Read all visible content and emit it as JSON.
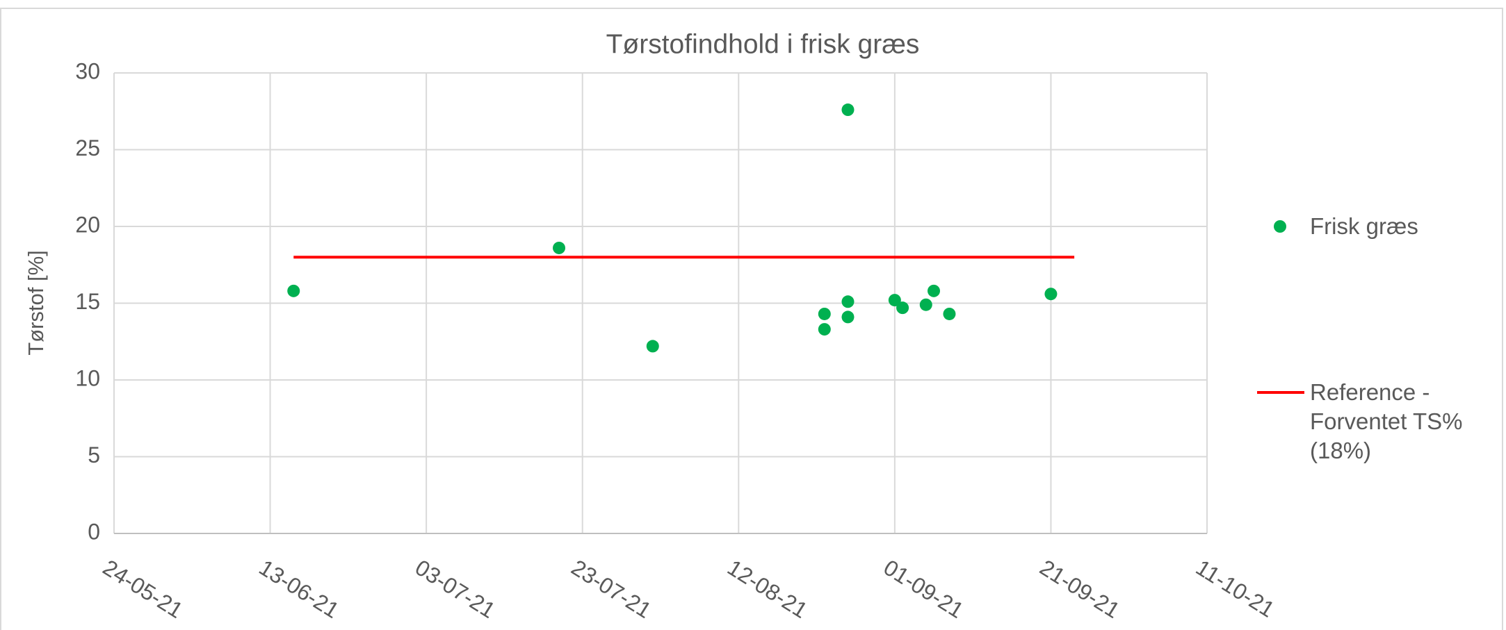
{
  "chart_data": {
    "type": "scatter",
    "title": "Tørstofindhold i frisk græs",
    "ylabel": "Tørstof [%]",
    "xlim": [
      "2021-05-24",
      "2021-10-11"
    ],
    "xticks": [
      {
        "value": "2021-05-24",
        "label": "24-05-21"
      },
      {
        "value": "2021-06-13",
        "label": "13-06-21"
      },
      {
        "value": "2021-07-03",
        "label": "03-07-21"
      },
      {
        "value": "2021-07-23",
        "label": "23-07-21"
      },
      {
        "value": "2021-08-12",
        "label": "12-08-21"
      },
      {
        "value": "2021-09-01",
        "label": "01-09-21"
      },
      {
        "value": "2021-09-21",
        "label": "21-09-21"
      },
      {
        "value": "2021-10-11",
        "label": "11-10-21"
      }
    ],
    "ylim": [
      0,
      30
    ],
    "yticks": [
      0,
      5,
      10,
      15,
      20,
      25,
      30
    ],
    "grid": true,
    "legend": "right",
    "series": [
      {
        "name": "Frisk græs",
        "color": "#00b050",
        "kind": "scatter",
        "x": [
          "2021-06-16",
          "2021-07-20",
          "2021-08-01",
          "2021-08-23",
          "2021-08-23",
          "2021-08-26",
          "2021-08-26",
          "2021-08-26",
          "2021-09-01",
          "2021-09-02",
          "2021-09-05",
          "2021-09-06",
          "2021-09-08",
          "2021-09-21"
        ],
        "values": [
          15.8,
          18.6,
          12.2,
          14.3,
          13.3,
          27.6,
          15.1,
          14.1,
          15.2,
          14.7,
          14.9,
          15.8,
          14.3,
          15.6
        ]
      },
      {
        "name": "Reference - Forventet TS% (18%)",
        "color": "#ff0000",
        "kind": "line",
        "x": [
          "2021-06-16",
          "2021-09-24"
        ],
        "values": [
          18,
          18
        ]
      }
    ]
  }
}
